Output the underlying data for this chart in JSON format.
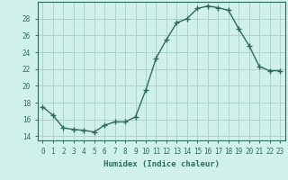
{
  "x": [
    0,
    1,
    2,
    3,
    4,
    5,
    6,
    7,
    8,
    9,
    10,
    11,
    12,
    13,
    14,
    15,
    16,
    17,
    18,
    19,
    20,
    21,
    22,
    23
  ],
  "y": [
    17.5,
    16.5,
    15.0,
    14.8,
    14.7,
    14.5,
    15.3,
    15.7,
    15.7,
    16.3,
    19.5,
    23.3,
    25.5,
    27.5,
    28.0,
    29.2,
    29.5,
    29.3,
    29.0,
    26.8,
    24.8,
    22.3,
    21.8,
    21.8
  ],
  "line_color": "#2e6b5e",
  "marker": "+",
  "marker_size": 4,
  "bg_color": "#cff0eb",
  "grid_color": "#aad4cc",
  "xlabel": "Humidex (Indice chaleur)",
  "xlim": [
    -0.5,
    23.5
  ],
  "ylim": [
    13.5,
    30.0
  ],
  "yticks": [
    14,
    16,
    18,
    20,
    22,
    24,
    26,
    28
  ],
  "xticks": [
    0,
    1,
    2,
    3,
    4,
    5,
    6,
    7,
    8,
    9,
    10,
    11,
    12,
    13,
    14,
    15,
    16,
    17,
    18,
    19,
    20,
    21,
    22,
    23
  ],
  "tick_fontsize": 5.5,
  "label_fontsize": 6.5
}
